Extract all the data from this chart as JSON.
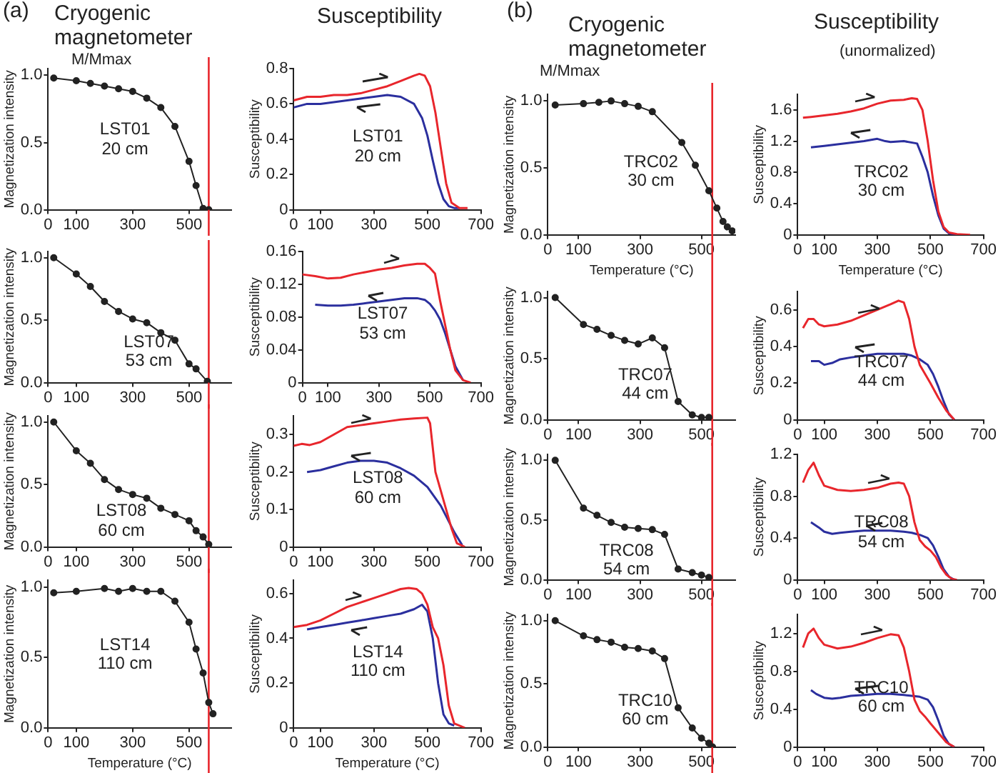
{
  "chart_data": [
    {
      "type": "line",
      "title": "Cryogenic magnetometer",
      "ylabel": "Magnetization intensity",
      "annotations": [
        "(a)",
        "M/Mmax",
        "LST01\n20 cm"
      ],
      "marker": "circle",
      "xlim": [
        0,
        650
      ],
      "xticks": [
        0,
        100,
        300,
        500
      ],
      "ylim": [
        0,
        1.05
      ],
      "yticks": [
        {
          "value": 0,
          "label": "0.0"
        },
        {
          "value": 0.5,
          "label": "0.5"
        },
        {
          "value": 1,
          "label": "1.0"
        }
      ],
      "ref_lines": [
        {
          "axis": "x",
          "value": 570,
          "color": "#e8262c"
        }
      ],
      "legend": false,
      "grid": false,
      "series": [
        {
          "color": "#222222",
          "x": [
            20,
            100,
            150,
            200,
            250,
            300,
            350,
            400,
            450,
            500,
            525,
            550,
            570
          ],
          "values": [
            0.98,
            0.96,
            0.94,
            0.92,
            0.9,
            0.88,
            0.83,
            0.76,
            0.62,
            0.36,
            0.18,
            0.01,
            0
          ]
        }
      ]
    },
    {
      "type": "line",
      "title": "Susceptibility",
      "ylabel": "Susceptibility",
      "annotations": [
        "LST01\n20 cm"
      ],
      "marker": "none",
      "xlim": [
        0,
        700
      ],
      "xticks": [
        0,
        100,
        300,
        500,
        700
      ],
      "ylim": [
        0,
        0.8
      ],
      "yticks": [
        0,
        0.2,
        0.4,
        0.6,
        0.8
      ],
      "legend": false,
      "grid": false,
      "series": [
        {
          "color": "#e8262c",
          "x": [
            0,
            50,
            100,
            150,
            200,
            250,
            300,
            350,
            400,
            450,
            470,
            490,
            510,
            530,
            550,
            570,
            590,
            620,
            650
          ],
          "values": [
            0.62,
            0.64,
            0.64,
            0.65,
            0.65,
            0.66,
            0.68,
            0.7,
            0.73,
            0.76,
            0.77,
            0.76,
            0.7,
            0.55,
            0.35,
            0.15,
            0.04,
            0.01,
            0.01
          ]
        },
        {
          "color": "#2b2f9e",
          "x": [
            0,
            50,
            100,
            150,
            200,
            250,
            300,
            350,
            400,
            450,
            480,
            500,
            520,
            540,
            560,
            580,
            600,
            620
          ],
          "values": [
            0.58,
            0.6,
            0.6,
            0.61,
            0.62,
            0.63,
            0.64,
            0.65,
            0.64,
            0.6,
            0.52,
            0.42,
            0.28,
            0.15,
            0.06,
            0.02,
            0.01,
            0.01
          ]
        }
      ]
    },
    {
      "type": "line",
      "ylabel": "Magnetization intensity",
      "annotations": [
        "LST07\n53 cm"
      ],
      "marker": "circle",
      "xlim": [
        0,
        650
      ],
      "xticks": [
        0,
        100,
        300,
        500
      ],
      "ylim": [
        0,
        1.05
      ],
      "yticks": [
        {
          "value": 0,
          "label": "0.0"
        },
        {
          "value": 0.5,
          "label": "0.5"
        },
        {
          "value": 1,
          "label": "1.0"
        }
      ],
      "ref_lines": [
        {
          "axis": "x",
          "value": 570,
          "color": "#e8262c"
        }
      ],
      "legend": false,
      "grid": false,
      "series": [
        {
          "color": "#222222",
          "x": [
            20,
            100,
            150,
            200,
            250,
            300,
            350,
            400,
            450,
            500,
            525,
            565
          ],
          "values": [
            1,
            0.87,
            0.77,
            0.65,
            0.57,
            0.51,
            0.48,
            0.4,
            0.34,
            0.15,
            0.11,
            0.01
          ]
        }
      ]
    },
    {
      "type": "line",
      "ylabel": "Susceptibility",
      "annotations": [
        "LST07\n53 cm"
      ],
      "marker": "none",
      "xlim": [
        0,
        700
      ],
      "xticks": [
        0,
        100,
        300,
        500,
        700
      ],
      "ylim": [
        0,
        0.16
      ],
      "yticks": [
        0,
        0.04,
        0.08,
        0.12,
        0.16
      ],
      "legend": false,
      "grid": false,
      "series": [
        {
          "color": "#e8262c",
          "x": [
            0,
            50,
            100,
            150,
            200,
            250,
            300,
            350,
            400,
            450,
            480,
            500,
            520,
            540,
            560,
            580,
            600,
            630,
            660
          ],
          "values": [
            0.132,
            0.13,
            0.127,
            0.128,
            0.132,
            0.135,
            0.138,
            0.14,
            0.143,
            0.145,
            0.145,
            0.14,
            0.133,
            0.1,
            0.07,
            0.04,
            0.015,
            0.003,
            0
          ]
        },
        {
          "color": "#2b2f9e",
          "x": [
            50,
            100,
            150,
            200,
            250,
            300,
            350,
            400,
            450,
            480,
            500,
            520,
            540,
            560,
            580,
            600,
            630
          ],
          "values": [
            0.095,
            0.094,
            0.094,
            0.095,
            0.097,
            0.099,
            0.101,
            0.103,
            0.103,
            0.101,
            0.096,
            0.088,
            0.077,
            0.06,
            0.04,
            0.02,
            0.003
          ]
        }
      ]
    },
    {
      "type": "line",
      "ylabel": "Magnetization intensity",
      "annotations": [
        "LST08\n60 cm"
      ],
      "marker": "circle",
      "xlim": [
        0,
        650
      ],
      "xticks": [
        0,
        100,
        300,
        500
      ],
      "ylim": [
        0,
        1.05
      ],
      "yticks": [
        {
          "value": 0,
          "label": "0.0"
        },
        {
          "value": 0.5,
          "label": "0.5"
        },
        {
          "value": 1,
          "label": "1.0"
        }
      ],
      "ref_lines": [
        {
          "axis": "x",
          "value": 570,
          "color": "#e8262c"
        }
      ],
      "legend": false,
      "grid": false,
      "series": [
        {
          "color": "#222222",
          "x": [
            20,
            100,
            150,
            200,
            250,
            300,
            350,
            400,
            450,
            500,
            525,
            550,
            570
          ],
          "values": [
            1,
            0.77,
            0.67,
            0.54,
            0.46,
            0.42,
            0.39,
            0.31,
            0.26,
            0.21,
            0.13,
            0.08,
            0.02
          ]
        }
      ]
    },
    {
      "type": "line",
      "ylabel": "Susceptibility",
      "annotations": [
        "LST08\n60 cm"
      ],
      "marker": "none",
      "xlim": [
        0,
        700
      ],
      "xticks": [
        0,
        100,
        300,
        500,
        700
      ],
      "ylim": [
        0,
        0.35
      ],
      "yticks": [
        0,
        0.1,
        0.2,
        0.3
      ],
      "legend": false,
      "grid": false,
      "series": [
        {
          "color": "#e8262c",
          "x": [
            0,
            30,
            60,
            100,
            150,
            200,
            250,
            300,
            350,
            400,
            450,
            500,
            510,
            530,
            550,
            570,
            590,
            610,
            640
          ],
          "values": [
            0.27,
            0.275,
            0.272,
            0.28,
            0.3,
            0.32,
            0.325,
            0.33,
            0.335,
            0.34,
            0.343,
            0.345,
            0.33,
            0.2,
            0.15,
            0.1,
            0.05,
            0.01,
            0
          ]
        },
        {
          "color": "#2b2f9e",
          "x": [
            50,
            100,
            150,
            200,
            250,
            300,
            350,
            400,
            450,
            500,
            550,
            600,
            630
          ],
          "values": [
            0.2,
            0.205,
            0.215,
            0.225,
            0.23,
            0.23,
            0.225,
            0.21,
            0.19,
            0.16,
            0.11,
            0.04,
            0.005
          ]
        }
      ]
    },
    {
      "type": "line",
      "xlabel": "Temperature (°C)",
      "ylabel": "Magnetization intensity",
      "annotations": [
        "LST14\n110 cm"
      ],
      "marker": "circle",
      "xlim": [
        0,
        650
      ],
      "xticks": [
        0,
        100,
        300,
        500
      ],
      "ylim": [
        0,
        1.05
      ],
      "yticks": [
        {
          "value": 0,
          "label": "0.0"
        },
        {
          "value": 0.5,
          "label": "0.5"
        },
        {
          "value": 1,
          "label": "1.0"
        }
      ],
      "ref_lines": [
        {
          "axis": "x",
          "value": 570,
          "color": "#e8262c"
        }
      ],
      "legend": false,
      "grid": false,
      "series": [
        {
          "color": "#222222",
          "x": [
            20,
            100,
            200,
            250,
            300,
            350,
            400,
            450,
            500,
            525,
            550,
            570,
            585
          ],
          "values": [
            0.96,
            0.97,
            0.99,
            0.97,
            0.99,
            0.97,
            0.97,
            0.9,
            0.75,
            0.56,
            0.39,
            0.18,
            0.1
          ]
        }
      ]
    },
    {
      "type": "line",
      "xlabel": "Temperature (°C)",
      "ylabel": "Susceptibility",
      "annotations": [
        "LST14\n110 cm"
      ],
      "marker": "none",
      "xlim": [
        0,
        700
      ],
      "xticks": [
        0,
        100,
        300,
        500,
        700
      ],
      "ylim": [
        0,
        0.66
      ],
      "yticks": [
        0,
        0.2,
        0.4,
        0.6
      ],
      "legend": false,
      "grid": false,
      "series": [
        {
          "color": "#e8262c",
          "x": [
            0,
            50,
            100,
            150,
            200,
            250,
            300,
            350,
            400,
            430,
            460,
            480,
            500,
            520,
            540,
            560,
            580,
            600,
            640
          ],
          "values": [
            0.45,
            0.46,
            0.48,
            0.51,
            0.54,
            0.56,
            0.58,
            0.6,
            0.62,
            0.625,
            0.62,
            0.6,
            0.55,
            0.45,
            0.4,
            0.28,
            0.1,
            0.02,
            0
          ]
        },
        {
          "color": "#2b2f9e",
          "x": [
            50,
            100,
            150,
            200,
            250,
            300,
            350,
            400,
            450,
            480,
            500,
            520,
            540,
            560,
            580,
            600
          ],
          "values": [
            0.44,
            0.45,
            0.46,
            0.47,
            0.48,
            0.49,
            0.5,
            0.51,
            0.53,
            0.55,
            0.52,
            0.4,
            0.2,
            0.06,
            0.02,
            0.01
          ]
        }
      ]
    },
    {
      "type": "line",
      "title": "Cryogenic magnetometer",
      "xlabel": "Temperature (°C)",
      "ylabel": "Magnetization intensity",
      "annotations": [
        "(b)",
        "M/Mmax",
        "TRC02\n30 cm"
      ],
      "marker": "circle",
      "xlim": [
        0,
        610
      ],
      "xticks": [
        0,
        100,
        300,
        500
      ],
      "ylim": [
        0,
        1.05
      ],
      "yticks": [
        {
          "value": 0,
          "label": "0.0"
        },
        {
          "value": 0.5,
          "label": "0.5"
        },
        {
          "value": 1,
          "label": "1.0"
        }
      ],
      "ref_lines": [
        {
          "axis": "x",
          "value": 535,
          "color": "#e8262c"
        }
      ],
      "legend": false,
      "grid": false,
      "series": [
        {
          "color": "#222222",
          "x": [
            24,
            116,
            166,
            206,
            250,
            294,
            340,
            436,
            480,
            524,
            550,
            570,
            584,
            600
          ],
          "values": [
            0.97,
            0.98,
            0.99,
            1,
            0.98,
            0.96,
            0.92,
            0.69,
            0.52,
            0.33,
            0.2,
            0.1,
            0.06,
            0.03
          ]
        }
      ]
    },
    {
      "type": "line",
      "title": "Susceptibility",
      "subtitle": "(unormalized)",
      "xlabel": "Temperature (°C)",
      "ylabel": "Susceptibility",
      "annotations": [
        "TRC02\n30 cm"
      ],
      "marker": "none",
      "xlim": [
        0,
        700
      ],
      "xticks": [
        0,
        100,
        300,
        500,
        700
      ],
      "ylim": [
        0,
        1.8
      ],
      "yticks": [
        0,
        0.4,
        0.8,
        1.2,
        1.6
      ],
      "legend": false,
      "grid": false,
      "series": [
        {
          "color": "#e8262c",
          "x": [
            20,
            50,
            100,
            150,
            200,
            250,
            300,
            350,
            400,
            430,
            450,
            470,
            490,
            510,
            530,
            550,
            570,
            600,
            650
          ],
          "values": [
            1.5,
            1.51,
            1.53,
            1.55,
            1.58,
            1.62,
            1.68,
            1.72,
            1.73,
            1.75,
            1.74,
            1.6,
            1.2,
            0.7,
            0.3,
            0.1,
            0.03,
            0.01,
            0
          ]
        },
        {
          "color": "#2b2f9e",
          "x": [
            50,
            100,
            150,
            200,
            250,
            300,
            330,
            350,
            400,
            450,
            470,
            490,
            510,
            530,
            550,
            570,
            600
          ],
          "values": [
            1.12,
            1.14,
            1.16,
            1.18,
            1.2,
            1.23,
            1.2,
            1.19,
            1.2,
            1.17,
            1,
            0.8,
            0.5,
            0.25,
            0.08,
            0.02,
            0
          ]
        }
      ]
    },
    {
      "type": "line",
      "ylabel": "Magnetization intensity",
      "annotations": [
        "TRC07\n44 cm"
      ],
      "marker": "circle",
      "xlim": [
        0,
        610
      ],
      "xticks": [
        0,
        100,
        300,
        500
      ],
      "ylim": [
        0,
        1.05
      ],
      "yticks": [
        {
          "value": 0,
          "label": "0.0"
        },
        {
          "value": 0.5,
          "label": "0.5"
        },
        {
          "value": 1,
          "label": "1.0"
        }
      ],
      "ref_lines": [
        {
          "axis": "x",
          "value": 535,
          "color": "#e8262c"
        }
      ],
      "legend": false,
      "grid": false,
      "series": [
        {
          "color": "#222222",
          "x": [
            24,
            116,
            160,
            206,
            250,
            294,
            340,
            380,
            424,
            470,
            500,
            524
          ],
          "values": [
            1,
            0.78,
            0.74,
            0.69,
            0.65,
            0.62,
            0.67,
            0.59,
            0.15,
            0.04,
            0.02,
            0.02
          ]
        }
      ]
    },
    {
      "type": "line",
      "ylabel": "Susceptibility",
      "annotations": [
        "TRC07\n44 cm"
      ],
      "marker": "none",
      "xlim": [
        0,
        700
      ],
      "xticks": [
        0,
        100,
        300,
        500,
        700
      ],
      "ylim": [
        0,
        0.7
      ],
      "yticks": [
        0,
        0.2,
        0.4,
        0.6
      ],
      "legend": false,
      "grid": false,
      "series": [
        {
          "color": "#e8262c",
          "x": [
            20,
            40,
            60,
            80,
            100,
            150,
            200,
            250,
            300,
            350,
            380,
            400,
            420,
            440,
            460,
            480,
            500,
            530,
            560,
            590
          ],
          "values": [
            0.5,
            0.55,
            0.55,
            0.52,
            0.51,
            0.52,
            0.54,
            0.57,
            0.6,
            0.63,
            0.65,
            0.64,
            0.55,
            0.4,
            0.3,
            0.25,
            0.2,
            0.12,
            0.05,
            0
          ]
        },
        {
          "color": "#2b2f9e",
          "x": [
            50,
            80,
            100,
            130,
            160,
            200,
            250,
            300,
            350,
            400,
            430,
            460,
            490,
            510,
            530,
            550,
            570,
            590
          ],
          "values": [
            0.32,
            0.32,
            0.3,
            0.31,
            0.33,
            0.34,
            0.35,
            0.36,
            0.36,
            0.36,
            0.35,
            0.33,
            0.3,
            0.25,
            0.18,
            0.1,
            0.03,
            0
          ]
        }
      ]
    },
    {
      "type": "line",
      "ylabel": "Magnetization intensity",
      "annotations": [
        "TRC08\n54 cm"
      ],
      "marker": "circle",
      "xlim": [
        0,
        610
      ],
      "xticks": [
        0,
        100,
        300,
        500
      ],
      "ylim": [
        0,
        1.05
      ],
      "yticks": [
        {
          "value": 0,
          "label": "0.0"
        },
        {
          "value": 0.5,
          "label": "0.5"
        },
        {
          "value": 1,
          "label": "1.0"
        }
      ],
      "ref_lines": [
        {
          "axis": "x",
          "value": 535,
          "color": "#e8262c"
        }
      ],
      "legend": false,
      "grid": false,
      "series": [
        {
          "color": "#222222",
          "x": [
            24,
            116,
            160,
            206,
            250,
            294,
            340,
            380,
            424,
            470,
            500,
            524
          ],
          "values": [
            1,
            0.6,
            0.54,
            0.48,
            0.44,
            0.43,
            0.42,
            0.38,
            0.09,
            0.06,
            0.04,
            0.02
          ]
        }
      ]
    },
    {
      "type": "line",
      "ylabel": "Susceptibility",
      "annotations": [
        "TRC08\n54 cm"
      ],
      "marker": "none",
      "xlim": [
        0,
        700
      ],
      "xticks": [
        0,
        100,
        300,
        500,
        700
      ],
      "ylim": [
        0,
        1.2
      ],
      "yticks": [
        0,
        0.4,
        0.8,
        1.2
      ],
      "legend": false,
      "grid": false,
      "series": [
        {
          "color": "#e8262c",
          "x": [
            20,
            40,
            60,
            80,
            100,
            150,
            200,
            250,
            300,
            350,
            380,
            400,
            420,
            440,
            460,
            480,
            500,
            520,
            540,
            560,
            580,
            600
          ],
          "values": [
            0.93,
            1.05,
            1.12,
            1,
            0.9,
            0.86,
            0.85,
            0.86,
            0.88,
            0.92,
            0.93,
            0.92,
            0.8,
            0.55,
            0.38,
            0.32,
            0.28,
            0.22,
            0.12,
            0.05,
            0.01,
            0
          ]
        },
        {
          "color": "#2b2f9e",
          "x": [
            50,
            80,
            100,
            130,
            160,
            200,
            250,
            300,
            350,
            400,
            430,
            460,
            490,
            510,
            530,
            550,
            570,
            590
          ],
          "values": [
            0.55,
            0.5,
            0.46,
            0.44,
            0.45,
            0.46,
            0.47,
            0.47,
            0.47,
            0.46,
            0.45,
            0.43,
            0.4,
            0.33,
            0.22,
            0.1,
            0.03,
            0
          ]
        }
      ]
    },
    {
      "type": "line",
      "ylabel": "Magnetization intensity",
      "annotations": [
        "TRC10\n60 cm"
      ],
      "marker": "circle",
      "xlim": [
        0,
        610
      ],
      "xticks": [
        0,
        100,
        300,
        500
      ],
      "ylim": [
        0,
        1.05
      ],
      "yticks": [
        {
          "value": 0,
          "label": "0.0"
        },
        {
          "value": 0.5,
          "label": "0.5"
        },
        {
          "value": 1,
          "label": "1.0"
        }
      ],
      "ref_lines": [
        {
          "axis": "x",
          "value": 535,
          "color": "#e8262c"
        }
      ],
      "legend": false,
      "grid": false,
      "series": [
        {
          "color": "#222222",
          "x": [
            24,
            116,
            160,
            206,
            250,
            294,
            340,
            380,
            424,
            470,
            500,
            524,
            536
          ],
          "values": [
            1,
            0.88,
            0.85,
            0.83,
            0.79,
            0.78,
            0.76,
            0.7,
            0.31,
            0.15,
            0.07,
            0.03,
            0
          ]
        }
      ]
    },
    {
      "type": "line",
      "ylabel": "Susceptibility",
      "annotations": [
        "TRC10\n60 cm"
      ],
      "marker": "none",
      "xlim": [
        0,
        700
      ],
      "xticks": [
        0,
        100,
        300,
        500,
        700
      ],
      "ylim": [
        0,
        1.4
      ],
      "yticks": [
        0,
        0.4,
        0.8,
        1.2
      ],
      "legend": false,
      "grid": false,
      "series": [
        {
          "color": "#e8262c",
          "x": [
            20,
            40,
            60,
            80,
            100,
            150,
            200,
            250,
            300,
            350,
            380,
            400,
            420,
            440,
            460,
            480,
            500,
            530,
            560,
            590
          ],
          "values": [
            1.05,
            1.2,
            1.25,
            1.15,
            1.08,
            1.04,
            1.06,
            1.1,
            1.15,
            1.19,
            1.18,
            1.05,
            0.8,
            0.5,
            0.38,
            0.32,
            0.25,
            0.15,
            0.05,
            0
          ]
        },
        {
          "color": "#2b2f9e",
          "x": [
            50,
            70,
            100,
            130,
            160,
            200,
            250,
            300,
            350,
            400,
            430,
            460,
            490,
            510,
            530,
            550,
            570,
            590
          ],
          "values": [
            0.6,
            0.56,
            0.52,
            0.51,
            0.52,
            0.54,
            0.55,
            0.56,
            0.56,
            0.55,
            0.54,
            0.53,
            0.5,
            0.42,
            0.28,
            0.12,
            0.03,
            0
          ]
        }
      ]
    }
  ]
}
